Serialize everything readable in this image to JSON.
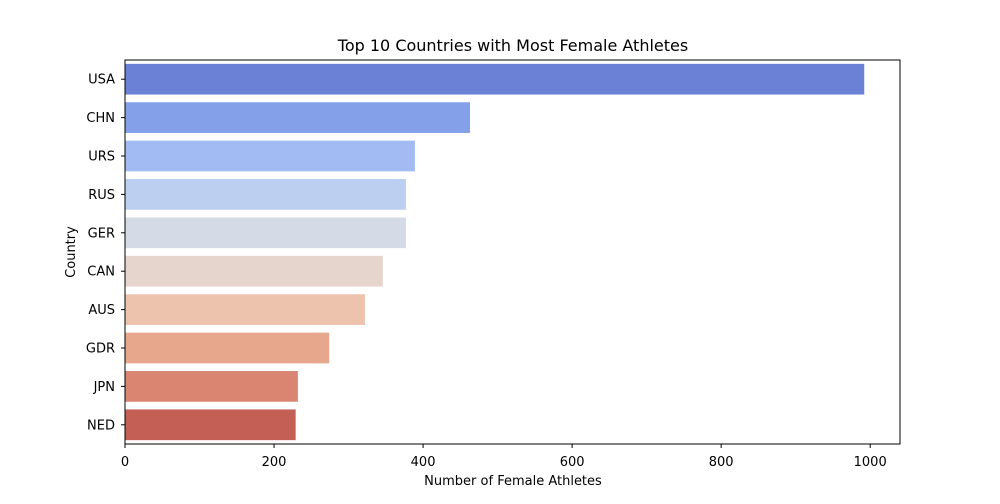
{
  "chart_data": {
    "type": "bar",
    "orientation": "horizontal",
    "title": "Top 10 Countries with Most Female Athletes",
    "xlabel": "Number of Female Athletes",
    "ylabel": "Country",
    "categories": [
      "USA",
      "CHN",
      "URS",
      "RUS",
      "GER",
      "CAN",
      "AUS",
      "GDR",
      "JPN",
      "NED"
    ],
    "values": [
      992,
      463,
      389,
      377,
      377,
      346,
      322,
      274,
      232,
      229
    ],
    "colors": [
      "#6b81d6",
      "#84a0e8",
      "#a2bbf2",
      "#bccff0",
      "#d5dbe6",
      "#e6d5cc",
      "#edc3ae",
      "#e6a78d",
      "#d98572",
      "#c35f55"
    ],
    "xlim": [
      0,
      1040
    ],
    "xticks": [
      0,
      200,
      400,
      600,
      800,
      1000
    ],
    "grid": false,
    "legend": "none"
  }
}
